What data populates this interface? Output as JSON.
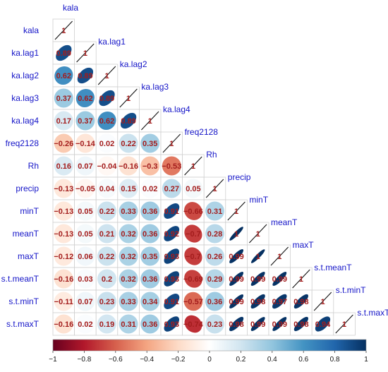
{
  "chart_data": {
    "type": "heatmap",
    "subtype": "correlation matrix, lower triangle, mixed ellipse + number",
    "variables": [
      "kala",
      "ka.lag1",
      "ka.lag2",
      "ka.lag3",
      "ka.lag4",
      "freq2128",
      "Rh",
      "precip",
      "minT",
      "meanT",
      "maxT",
      "s.t.meanT",
      "s.t.minT",
      "s.t.maxT"
    ],
    "matrix": [
      [
        "1"
      ],
      [
        "0.89",
        "1"
      ],
      [
        "0.62",
        "0.89",
        "1"
      ],
      [
        "0.37",
        "0.62",
        "0.89",
        "1"
      ],
      [
        "0.17",
        "0.37",
        "0.62",
        "0.89",
        "1"
      ],
      [
        "−0.26",
        "−0.14",
        "0.02",
        "0.22",
        "0.35",
        "1"
      ],
      [
        "0.16",
        "0.07",
        "−0.04",
        "−0.16",
        "−0.3",
        "−0.53",
        "1"
      ],
      [
        "−0.13",
        "−0.05",
        "0.04",
        "0.15",
        "0.02",
        "0.27",
        "0.05",
        "1"
      ],
      [
        "−0.13",
        "0.05",
        "0.22",
        "0.33",
        "0.36",
        "0.91",
        "−0.66",
        "0.31",
        "1"
      ],
      [
        "−0.13",
        "0.05",
        "0.21",
        "0.32",
        "0.36",
        "0.92",
        "−0.7",
        "0.28",
        "1",
        "1"
      ],
      [
        "−0.12",
        "0.06",
        "0.22",
        "0.32",
        "0.35",
        "0.93",
        "−0.7",
        "0.26",
        "0.99",
        "1",
        "1"
      ],
      [
        "−0.16",
        "0.03",
        "0.2",
        "0.32",
        "0.36",
        "0.93",
        "−0.69",
        "0.29",
        "0.99",
        "0.99",
        "0.99",
        "1"
      ],
      [
        "−0.11",
        "0.07",
        "0.23",
        "0.33",
        "0.34",
        "0.91",
        "−0.57",
        "0.36",
        "0.99",
        "0.98",
        "0.97",
        "0.98",
        "1"
      ],
      [
        "−0.16",
        "0.02",
        "0.19",
        "0.31",
        "0.36",
        "0.93",
        "−0.74",
        "0.23",
        "0.98",
        "0.99",
        "0.99",
        "0.98",
        "0.94",
        "1"
      ]
    ],
    "colorbar": {
      "ticks": [
        "−1",
        "−0.8",
        "−0.6",
        "−0.4",
        "−0.2",
        "0",
        "0.2",
        "0.4",
        "0.6",
        "0.8",
        "1"
      ],
      "colors": [
        "#67001f",
        "#b2182b",
        "#d6604d",
        "#f4a582",
        "#fddbc7",
        "#ffffff",
        "#d1e5f0",
        "#92c5de",
        "#4393c3",
        "#2166ac",
        "#053061"
      ]
    },
    "label_color": "#1515c8",
    "number_color": "#a31c1c",
    "diagonal_line_color": "#111111",
    "grid": true,
    "legend": "bottom"
  }
}
